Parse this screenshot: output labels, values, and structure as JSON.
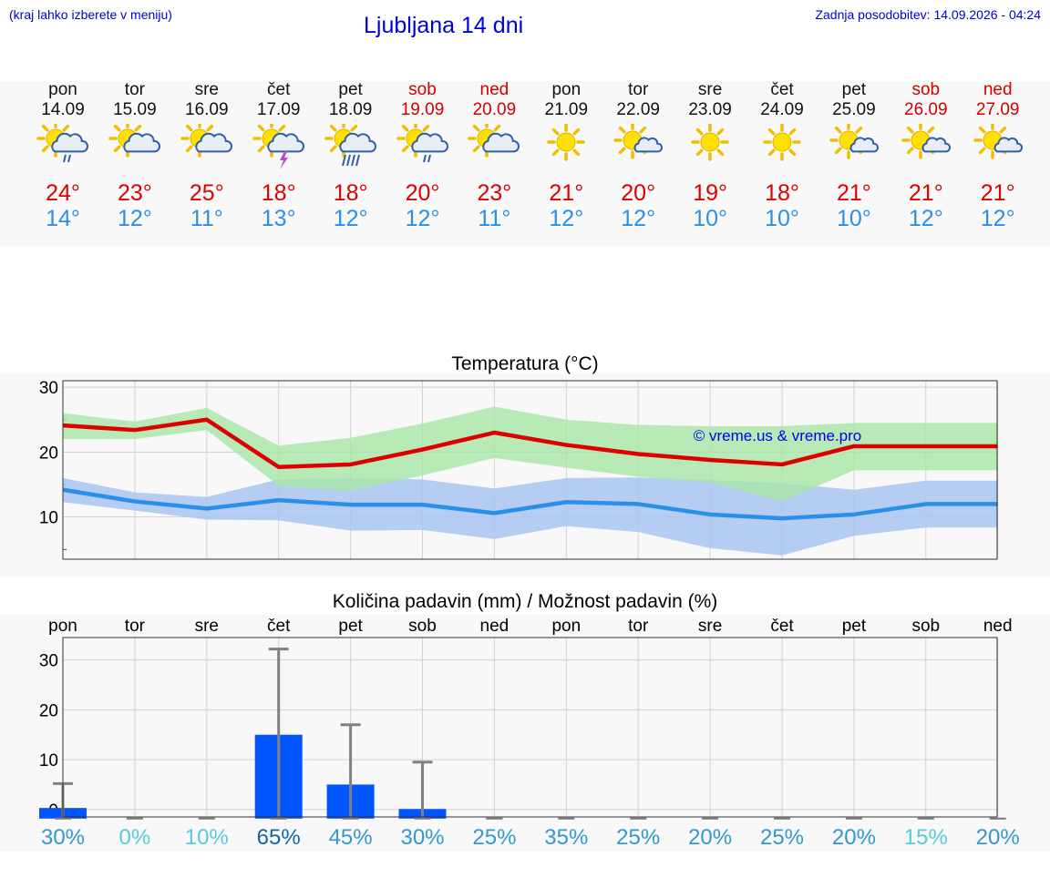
{
  "header": {
    "hint": "(kraj lahko izberete v meniju)",
    "title": "Ljubljana 14 dni",
    "updated": "Zadnja posodobitev: 14.09.2026 - 04:24"
  },
  "forecast": [
    {
      "name": "pon",
      "date": "14.09",
      "weekend": false,
      "icon": "sun-cloud-drizzle-icon",
      "tmax": "24°",
      "tmin": "14°"
    },
    {
      "name": "tor",
      "date": "15.09",
      "weekend": false,
      "icon": "sun-cloud-icon",
      "tmax": "23°",
      "tmin": "12°"
    },
    {
      "name": "sre",
      "date": "16.09",
      "weekend": false,
      "icon": "sun-cloud-icon",
      "tmax": "25°",
      "tmin": "11°"
    },
    {
      "name": "čet",
      "date": "17.09",
      "weekend": false,
      "icon": "sun-thunder-icon",
      "tmax": "18°",
      "tmin": "13°"
    },
    {
      "name": "pet",
      "date": "18.09",
      "weekend": false,
      "icon": "sun-cloud-rain-icon",
      "tmax": "18°",
      "tmin": "12°"
    },
    {
      "name": "sob",
      "date": "19.09",
      "weekend": true,
      "icon": "sun-cloud-drizzle-icon",
      "tmax": "20°",
      "tmin": "12°"
    },
    {
      "name": "ned",
      "date": "20.09",
      "weekend": true,
      "icon": "sun-cloud-icon",
      "tmax": "23°",
      "tmin": "11°"
    },
    {
      "name": "pon",
      "date": "21.09",
      "weekend": false,
      "icon": "sun-icon",
      "tmax": "21°",
      "tmin": "12°"
    },
    {
      "name": "tor",
      "date": "22.09",
      "weekend": false,
      "icon": "sun-small-cloud-icon",
      "tmax": "20°",
      "tmin": "12°"
    },
    {
      "name": "sre",
      "date": "23.09",
      "weekend": false,
      "icon": "sun-icon",
      "tmax": "19°",
      "tmin": "10°"
    },
    {
      "name": "čet",
      "date": "24.09",
      "weekend": false,
      "icon": "sun-icon",
      "tmax": "18°",
      "tmin": "10°"
    },
    {
      "name": "pet",
      "date": "25.09",
      "weekend": false,
      "icon": "sun-small-cloud-icon",
      "tmax": "21°",
      "tmin": "10°"
    },
    {
      "name": "sob",
      "date": "26.09",
      "weekend": true,
      "icon": "sun-small-cloud-icon",
      "tmax": "21°",
      "tmin": "12°"
    },
    {
      "name": "ned",
      "date": "27.09",
      "weekend": true,
      "icon": "sun-small-cloud-icon",
      "tmax": "21°",
      "tmin": "12°"
    }
  ],
  "colors": {
    "tmax": "#dd0000",
    "tmin": "#2a8fe8",
    "maxBand": "#a8e6a6",
    "minBand": "#a9c4f2",
    "bar": "#0055ff",
    "errorbar": "#808080",
    "chance_light": "#55ccdd",
    "chance_mid": "#3399cc",
    "chance_dark": "#1166aa"
  },
  "chart_data": [
    {
      "type": "line",
      "title": "Temperatura (°C)",
      "watermark": "© vreme.us & vreme.pro",
      "x": [
        "14.09",
        "15.09",
        "16.09",
        "17.09",
        "18.09",
        "19.09",
        "20.09",
        "21.09",
        "22.09",
        "23.09",
        "24.09",
        "25.09",
        "26.09",
        "27.09"
      ],
      "ylim": [
        3.5,
        31
      ],
      "yticks": [
        10,
        20,
        30
      ],
      "grid": true,
      "series": [
        {
          "values": [
            24.1,
            23.4,
            25.0,
            17.7,
            18.1,
            20.4,
            23.0,
            21.1,
            19.7,
            18.8,
            18.1,
            20.9,
            20.9,
            20.9
          ],
          "band_low": [
            22.0,
            22.0,
            23.4,
            14.8,
            14.0,
            16.4,
            19.1,
            17.6,
            16.2,
            15.3,
            12.4,
            17.2,
            17.2,
            17.2
          ],
          "band_high": [
            26.0,
            24.7,
            26.8,
            21.0,
            22.2,
            24.4,
            27.0,
            25.0,
            24.2,
            24.0,
            24.0,
            24.5,
            24.5,
            24.5
          ]
        },
        {
          "values": [
            14.2,
            12.4,
            11.3,
            12.6,
            11.9,
            11.9,
            10.6,
            12.3,
            12.0,
            10.4,
            9.8,
            10.4,
            12.0,
            12.0
          ],
          "band_low": [
            12.3,
            11.0,
            9.6,
            9.5,
            7.9,
            8.0,
            6.6,
            8.6,
            7.7,
            5.2,
            4.1,
            7.1,
            8.4,
            8.4
          ],
          "band_high": [
            16.0,
            13.8,
            13.1,
            15.8,
            16.0,
            15.8,
            14.4,
            16.0,
            16.1,
            15.7,
            15.2,
            14.2,
            15.6,
            15.6
          ]
        }
      ]
    },
    {
      "type": "bar",
      "title": "Količina padavin (mm) / Možnost padavin (%)",
      "categories": [
        "pon",
        "tor",
        "sre",
        "čet",
        "pet",
        "sob",
        "ned",
        "pon",
        "tor",
        "sre",
        "čet",
        "pet",
        "sob",
        "ned"
      ],
      "values": [
        0.3,
        0,
        0,
        15,
        5,
        0.1,
        0,
        0,
        0,
        0,
        0,
        0,
        0,
        0
      ],
      "error_high": [
        5.2,
        0,
        0,
        32.2,
        17,
        9.5,
        0,
        0,
        0,
        0,
        0,
        0,
        0,
        0
      ],
      "chance": [
        "30%",
        "0%",
        "10%",
        "65%",
        "45%",
        "30%",
        "25%",
        "35%",
        "25%",
        "20%",
        "25%",
        "20%",
        "15%",
        "20%"
      ],
      "ylim": [
        -1.5,
        34.5
      ],
      "yticks": [
        "0",
        "10",
        "20",
        "30"
      ],
      "grid": true
    }
  ]
}
